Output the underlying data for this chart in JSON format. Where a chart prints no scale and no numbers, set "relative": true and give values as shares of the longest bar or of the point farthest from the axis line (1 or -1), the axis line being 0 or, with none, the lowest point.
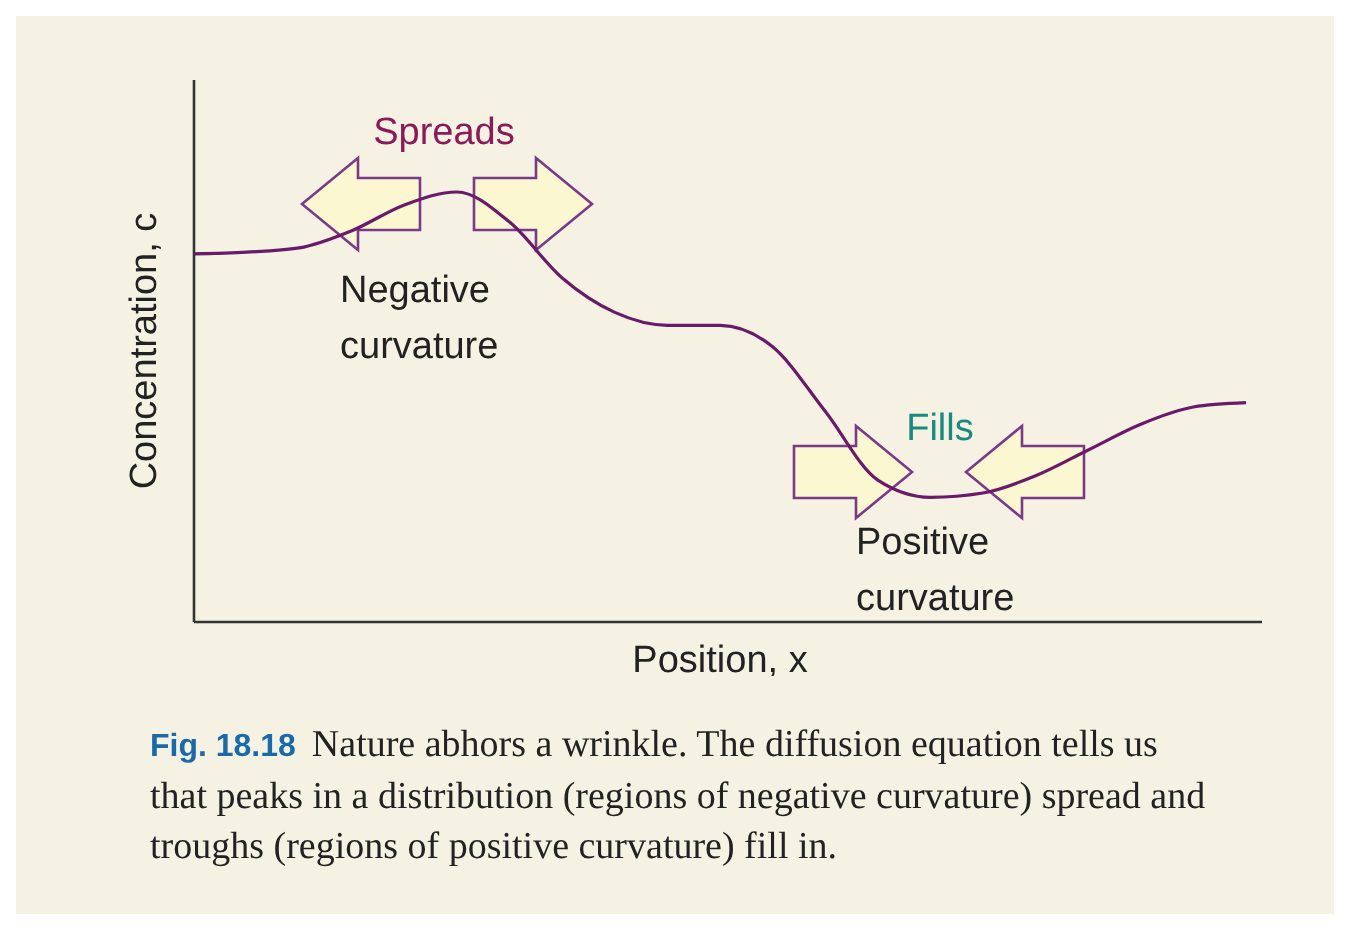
{
  "chart_data": {
    "type": "line",
    "relative": true,
    "xlabel": "Position, x",
    "ylabel": "Concentration, c",
    "categories": [
      null,
      null,
      null,
      null,
      null,
      null,
      null,
      null,
      null,
      null,
      null,
      null,
      null,
      null,
      null,
      null,
      null,
      null,
      null,
      null,
      null
    ],
    "series": [
      {
        "color": "#6a1a6a",
        "values": [
          0.856,
          0.86,
          0.87,
          0.91,
          0.97,
          1.0,
          0.93,
          0.8,
          0.72,
          0.69,
          0.69,
          0.64,
          0.49,
          0.33,
          0.29,
          0.3,
          0.34,
          0.4,
          0.46,
          0.5,
          0.51
        ]
      }
    ],
    "annotations": [
      "Spreads",
      "Negative curvature",
      "Fills",
      "Positive curvature",
      "Fig. 18.18",
      "Nature abhors a wrinkle. The diffusion equation tells us that peaks in a distribution (regions of negative curvature) spread and troughs (regions of positive curvature) fill in."
    ]
  }
}
